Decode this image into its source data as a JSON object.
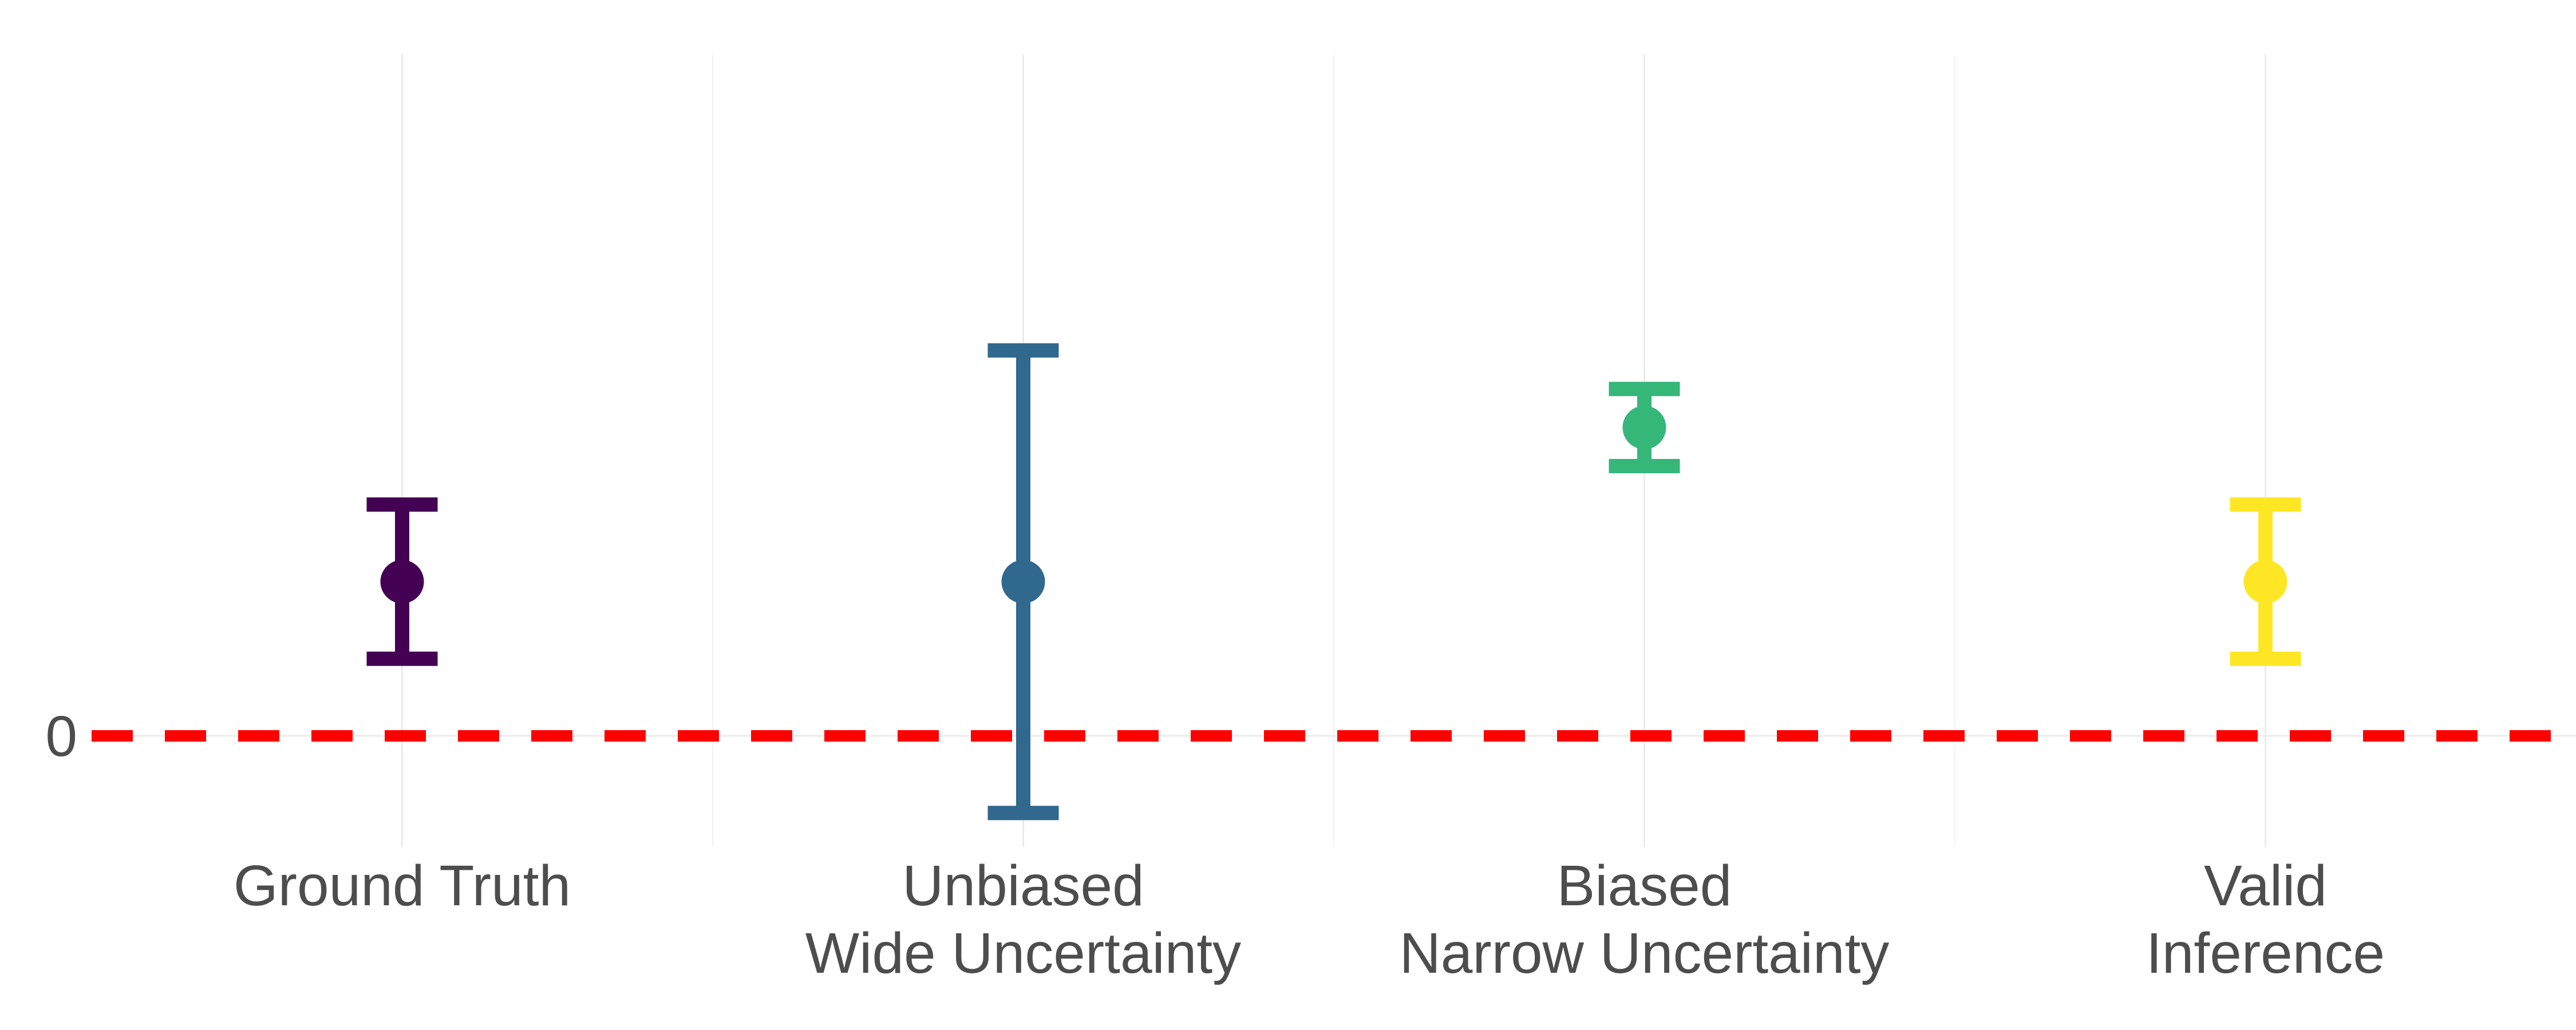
{
  "chart_data": {
    "type": "errorbar",
    "title": "",
    "xlabel": "",
    "ylabel": "",
    "grid": true,
    "ylim": [
      -0.72,
      4.42
    ],
    "y_ticks": [
      0
    ],
    "y_tick_labels": [
      "0"
    ],
    "reference_line": {
      "y": 0,
      "style": "dashed",
      "color": "#ff0000"
    },
    "points": [
      {
        "category": "Ground Truth",
        "label_lines": [
          "Ground Truth"
        ],
        "estimate": 1.0,
        "lower": 0.5,
        "upper": 1.5,
        "color": "#440154"
      },
      {
        "category": "Unbiased Wide Uncertainty",
        "label_lines": [
          "Unbiased",
          "Wide Uncertainty"
        ],
        "estimate": 1.0,
        "lower": -0.5,
        "upper": 2.5,
        "color": "#31688e"
      },
      {
        "category": "Biased Narrow Uncertainty",
        "label_lines": [
          "Biased",
          "Narrow Uncertainty"
        ],
        "estimate": 2.0,
        "lower": 1.75,
        "upper": 2.25,
        "color": "#35b779"
      },
      {
        "category": "Valid Inference",
        "label_lines": [
          "Valid",
          "Inference"
        ],
        "estimate": 1.0,
        "lower": 0.5,
        "upper": 1.5,
        "color": "#fde725"
      }
    ]
  }
}
